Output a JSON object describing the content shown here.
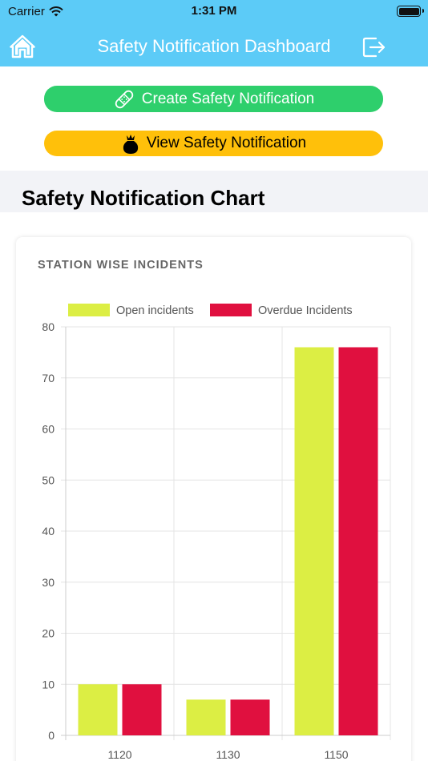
{
  "status": {
    "carrier": "Carrier",
    "time": "1:31 PM"
  },
  "nav": {
    "title": "Safety Notification Dashboard"
  },
  "buttons": {
    "create_label": "Create Safety Notification",
    "view_label": "View Safety Notification"
  },
  "section": {
    "title": "Safety Notification Chart"
  },
  "card": {
    "title": "STATION WISE INCIDENTS"
  },
  "colors": {
    "header": "#5ccbf7",
    "create": "#2ecf6c",
    "view": "#ffc00a",
    "open": "#dcee44",
    "overdue": "#e0103f"
  },
  "icons": [
    "wifi-icon",
    "battery-icon",
    "home-icon",
    "logout-icon",
    "bandage-icon",
    "bag-icon"
  ],
  "chart_data": {
    "type": "bar",
    "title": "STATION WISE INCIDENTS",
    "categories": [
      "1120",
      "1130",
      "1150"
    ],
    "series": [
      {
        "name": "Open incidents",
        "values": [
          10,
          7,
          76
        ],
        "color": "#dcee44"
      },
      {
        "name": "Overdue Incidents",
        "values": [
          10,
          7,
          76
        ],
        "color": "#e0103f"
      }
    ],
    "ylim": [
      0,
      80
    ],
    "yticks": [
      0,
      10,
      20,
      30,
      40,
      50,
      60,
      70,
      80
    ],
    "grid": true,
    "legend": "top"
  }
}
